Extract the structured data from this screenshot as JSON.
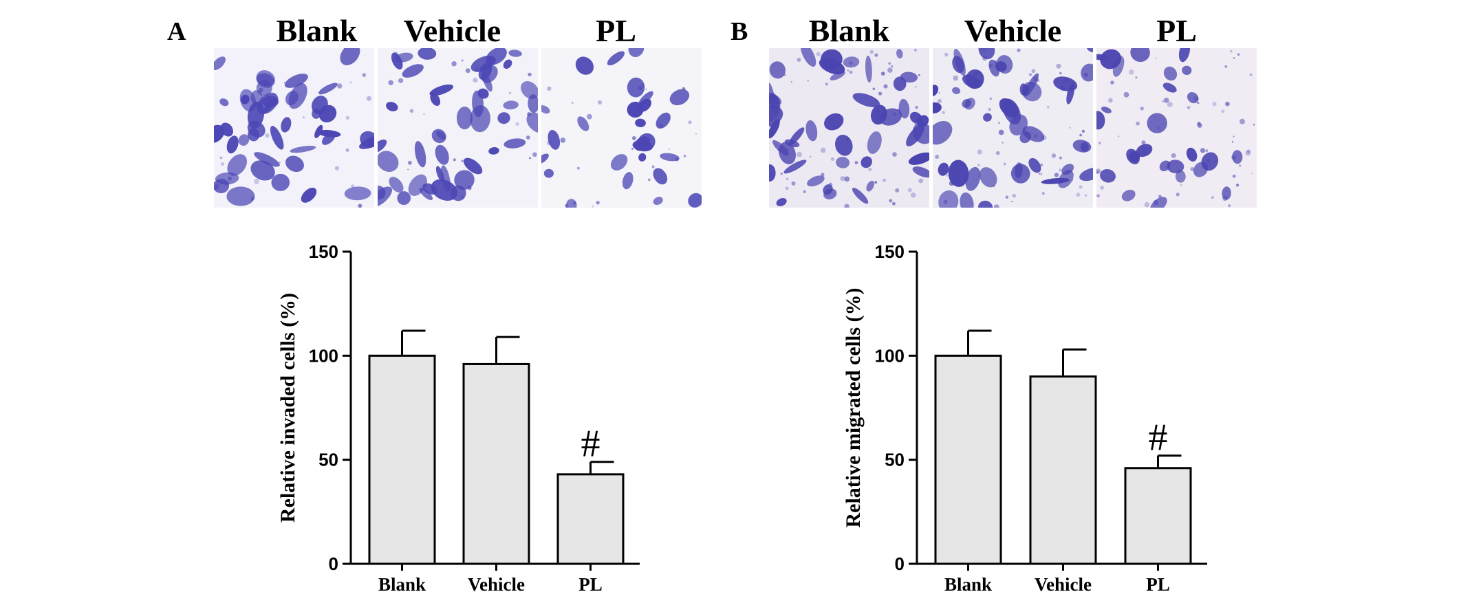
{
  "panels": [
    {
      "letter": "A",
      "micro_labels": [
        "Blank",
        "Vehicle",
        "PL"
      ],
      "tones": [
        "#f3f2fa",
        "#f2f2f8",
        "#f4f4f9"
      ],
      "cell_color": "#4b46b4",
      "chart_data": {
        "type": "bar",
        "categories": [
          "Blank",
          "Vehicle",
          "PL"
        ],
        "values": [
          100,
          96,
          43
        ],
        "errors": [
          12,
          13,
          6
        ],
        "annotations": [
          "",
          "",
          "#"
        ],
        "xlabel": "",
        "ylabel": "Relative invaded cells (%)",
        "ylim": [
          0,
          150
        ],
        "yticks": [
          0,
          50,
          100,
          150
        ],
        "bar_color": "#e6e6e6",
        "grid": false
      }
    },
    {
      "letter": "B",
      "micro_labels": [
        "Blank",
        "Vehicle",
        "PL"
      ],
      "tones": [
        "#ede9f3",
        "#efedf4",
        "#f1ecf3"
      ],
      "cell_color": "#4a44b0",
      "chart_data": {
        "type": "bar",
        "categories": [
          "Blank",
          "Vehicle",
          "PL"
        ],
        "values": [
          100,
          90,
          46
        ],
        "errors": [
          12,
          13,
          6
        ],
        "annotations": [
          "",
          "",
          "#"
        ],
        "xlabel": "",
        "ylabel": "Relative migrated cells (%)",
        "ylim": [
          0,
          150
        ],
        "yticks": [
          0,
          50,
          100,
          150
        ],
        "bar_color": "#e6e6e6",
        "grid": false
      }
    }
  ]
}
